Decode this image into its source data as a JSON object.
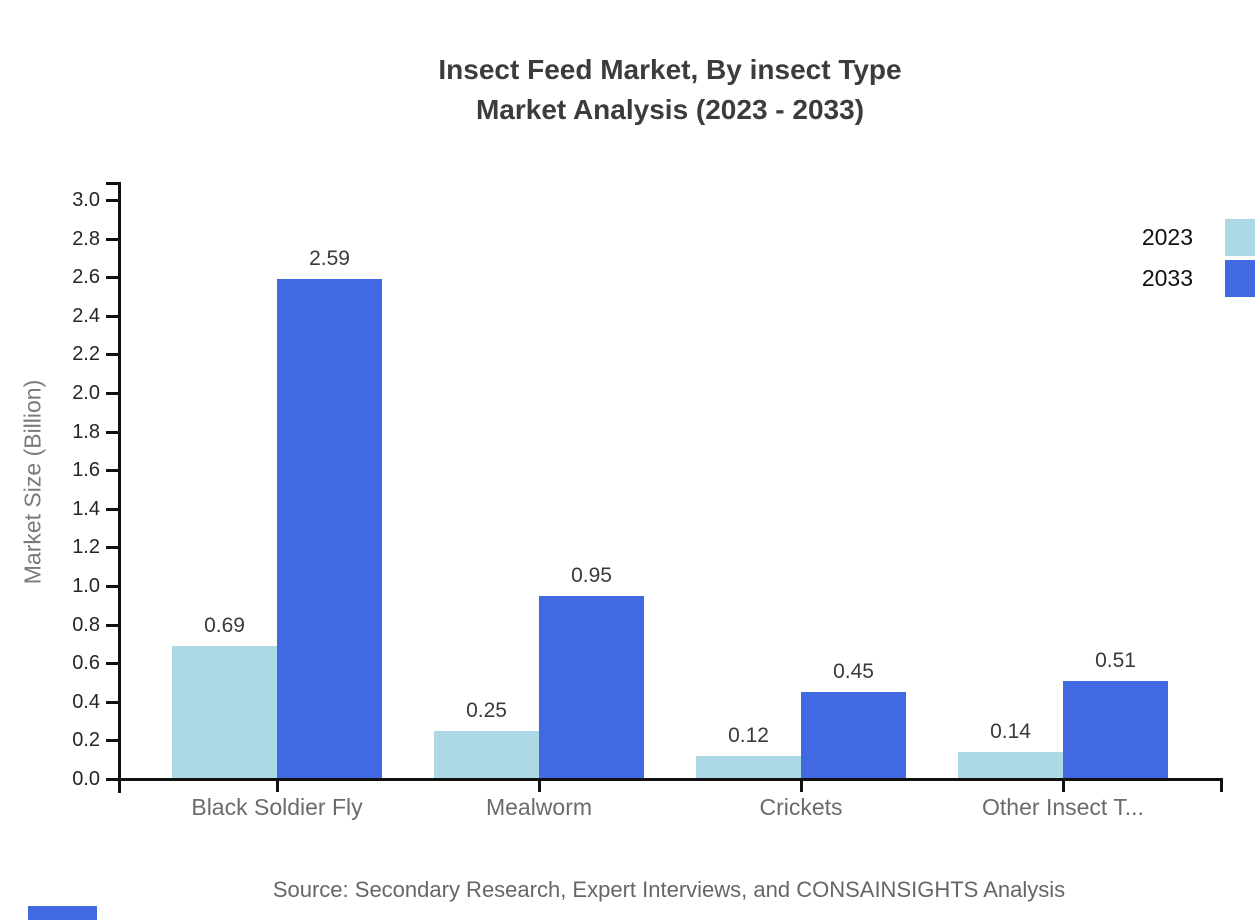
{
  "title": {
    "line1": "Insect Feed Market, By insect Type",
    "line2": "Market Analysis (2023 - 2033)"
  },
  "chart_data": {
    "type": "bar",
    "categories": [
      "Black Soldier Fly",
      "Mealworm",
      "Crickets",
      "Other Insect T..."
    ],
    "series": [
      {
        "name": "2023",
        "color": "#add8e6",
        "values": [
          0.69,
          0.25,
          0.12,
          0.14
        ]
      },
      {
        "name": "2033",
        "color": "#4169e1",
        "values": [
          2.59,
          0.95,
          0.45,
          0.51
        ]
      }
    ],
    "ylabel": "Market Size (Billion)",
    "xlabel": "",
    "ylim": [
      0,
      3.0
    ],
    "ytick_step": 0.2,
    "grid": false,
    "legend_position": "top-right",
    "value_labels": true
  },
  "footer": {
    "source": "Source: Secondary Research, Expert Interviews, and CONSAINSIGHTS Analysis"
  },
  "colors": {
    "series_2023": "#add8e6",
    "series_2033": "#4169e1",
    "title_text": "#3c3c3c",
    "axis_line": "#111111",
    "tick_label": "#262626",
    "category_label": "#6b6b6b",
    "value_label": "#3a3a3a",
    "axis_title": "#7a7a7a",
    "source_text": "#666666",
    "brand_mark": "#4169e1"
  }
}
